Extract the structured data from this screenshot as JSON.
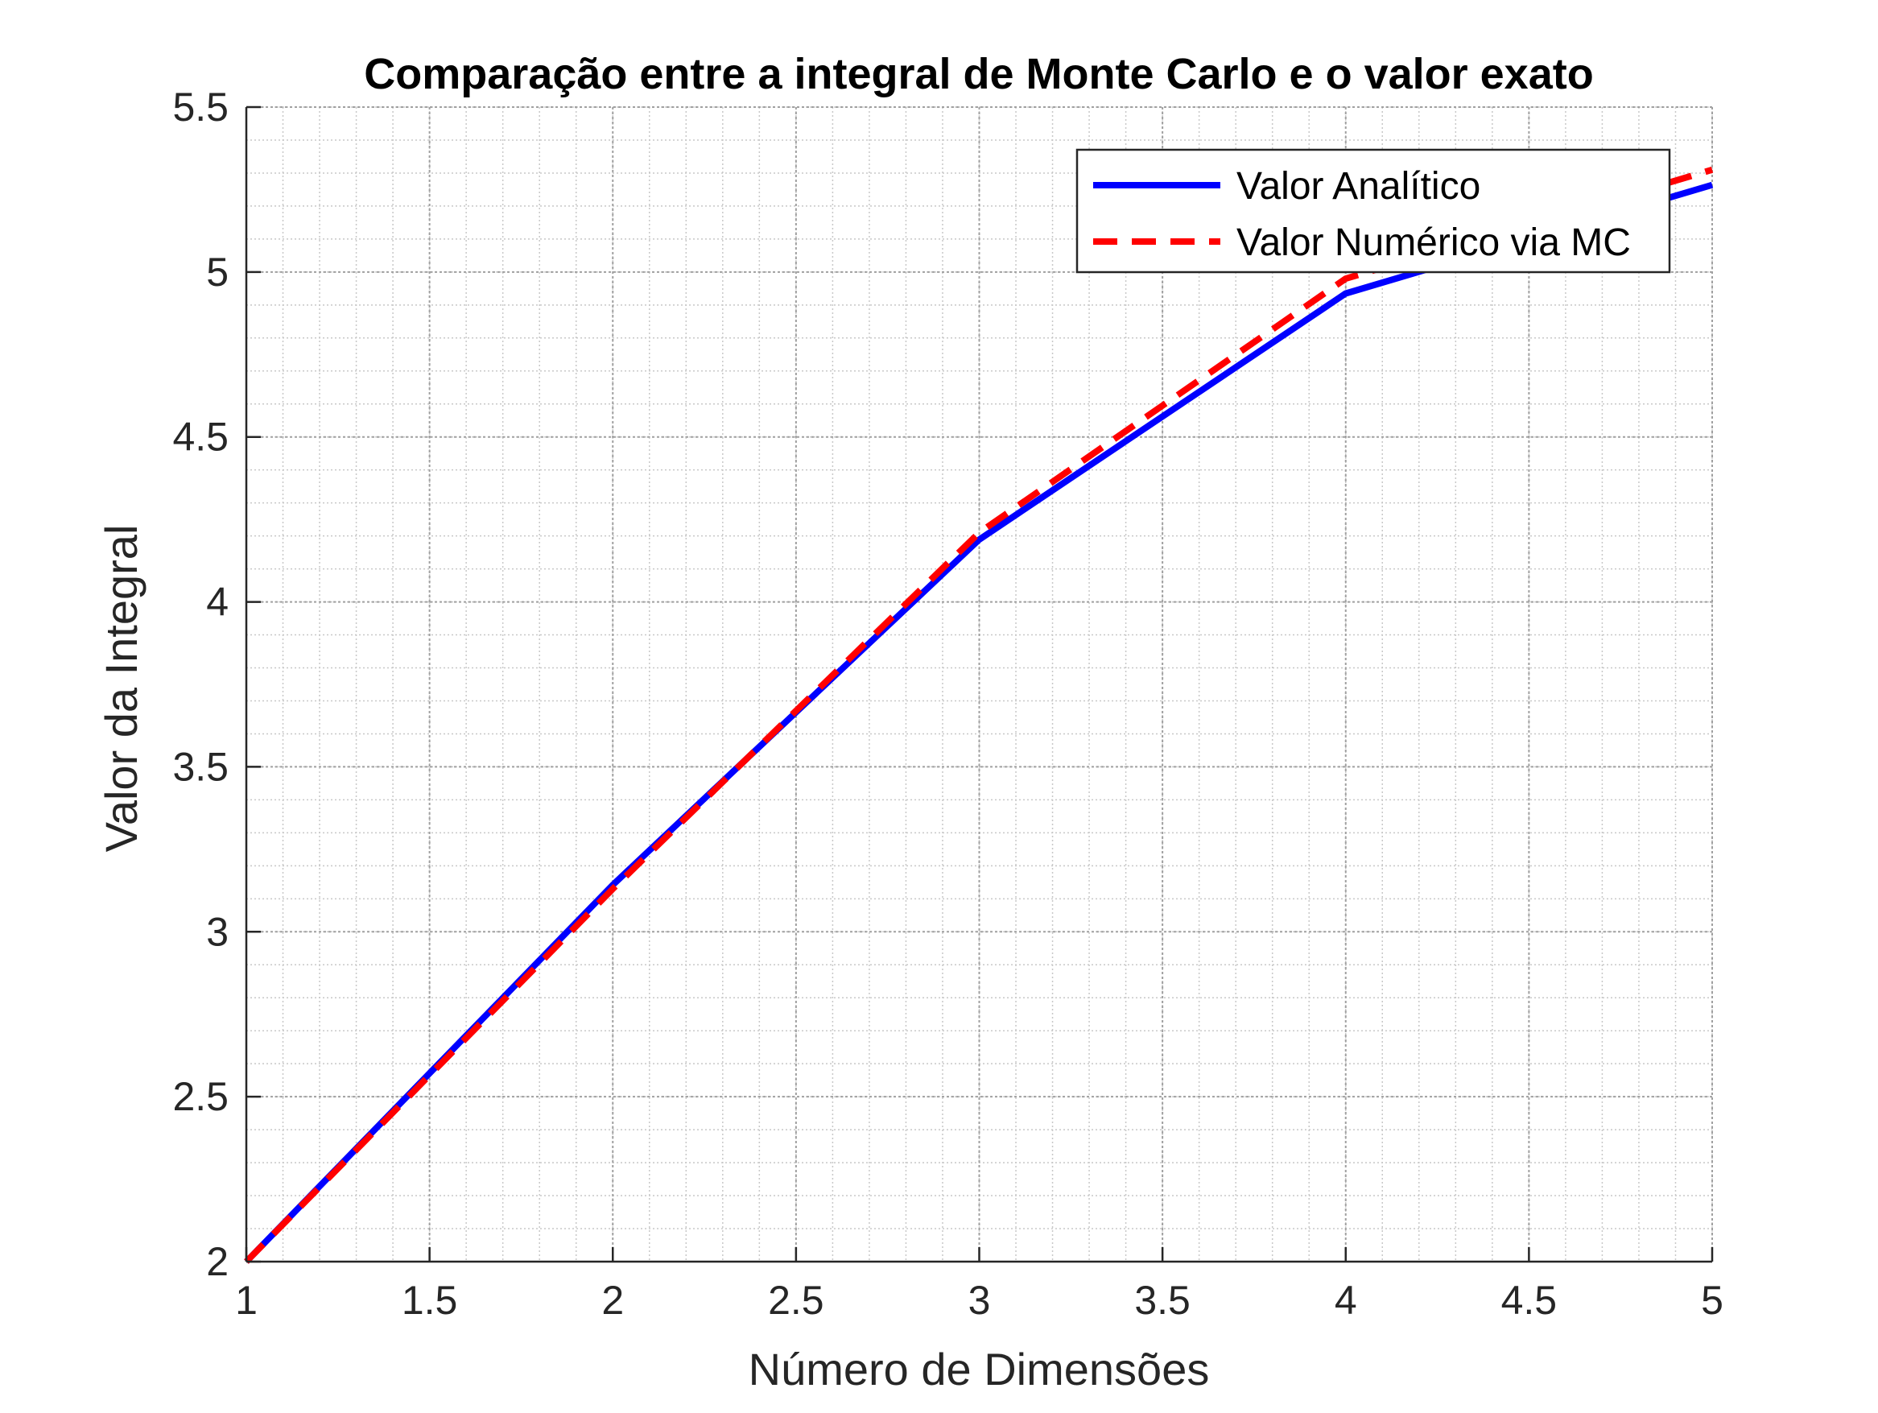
{
  "chart_data": {
    "type": "line",
    "title": "Comparação entre a integral de Monte Carlo e o valor exato",
    "xlabel": "Número de Dimensões",
    "ylabel": "Valor da Integral",
    "xlim": [
      1,
      5
    ],
    "ylim": [
      2,
      5.5
    ],
    "xticks": [
      1,
      1.5,
      2,
      2.5,
      3,
      3.5,
      4,
      4.5,
      5
    ],
    "xtick_labels": [
      "1",
      "1.5",
      "2",
      "2.5",
      "3",
      "3.5",
      "4",
      "4.5",
      "5"
    ],
    "yticks": [
      2,
      2.5,
      3,
      3.5,
      4,
      4.5,
      5,
      5.5
    ],
    "ytick_labels": [
      "2",
      "2.5",
      "3",
      "3.5",
      "4",
      "4.5",
      "5",
      "5.5"
    ],
    "grid": "on (major and minor)",
    "legend_position": "top-right",
    "series": [
      {
        "name": "Valor Analítico",
        "color": "#0000ff",
        "style": "solid",
        "x": [
          1,
          2,
          3,
          4,
          5
        ],
        "values": [
          2.0,
          3.142,
          4.189,
          4.935,
          5.264
        ]
      },
      {
        "name": "Valor Numérico via MC",
        "color": "#ff0000",
        "style": "dashed",
        "x": [
          1,
          2,
          3,
          4,
          5
        ],
        "values": [
          2.0,
          3.13,
          4.21,
          4.98,
          5.31
        ]
      }
    ]
  }
}
